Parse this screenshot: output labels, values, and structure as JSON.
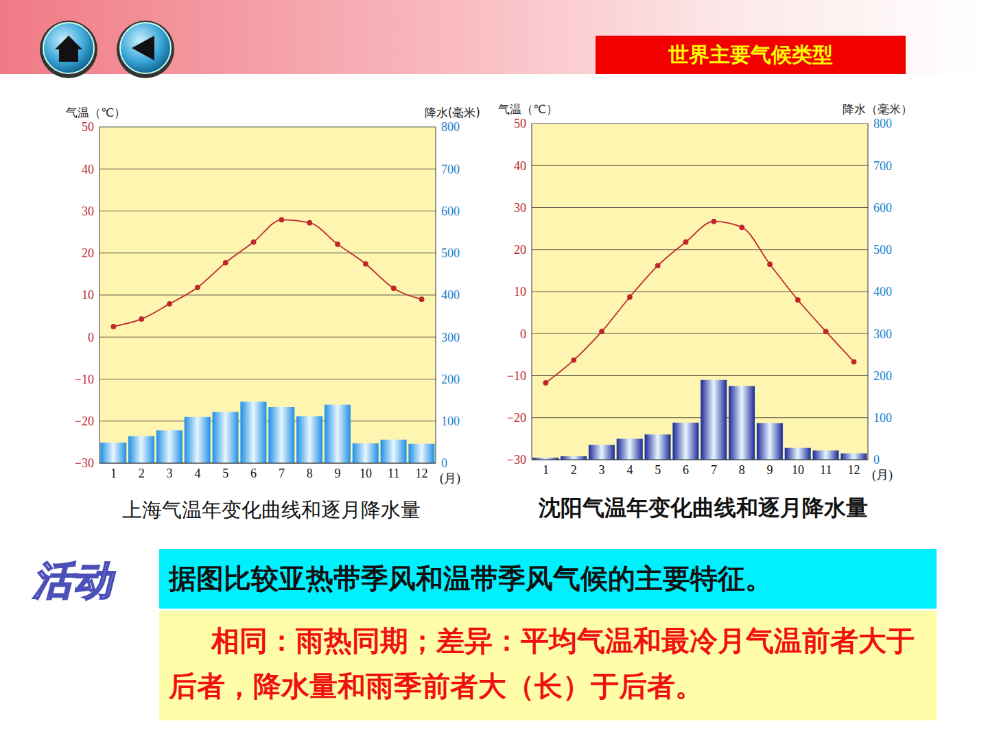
{
  "header": {
    "title": "世界主要气候类型"
  },
  "chart_data": [
    {
      "type": "bar",
      "title": "上海气温年变化曲线和逐月降水量",
      "x_label": "(月)",
      "y_label": "气温（℃）",
      "y2_label": "降水(毫米)",
      "categories": [
        "1",
        "2",
        "3",
        "4",
        "5",
        "6",
        "7",
        "8",
        "9",
        "10",
        "11",
        "12"
      ],
      "ylim": [
        -30,
        50
      ],
      "yticks": [
        {
          "value": -30,
          "label": "−30"
        },
        {
          "value": -20,
          "label": "−20"
        },
        {
          "value": -10,
          "label": "−10"
        },
        0,
        10,
        20,
        30,
        40,
        50
      ],
      "y2lim": [
        0,
        800
      ],
      "y2ticks": [
        0,
        100,
        200,
        300,
        400,
        500,
        600,
        700,
        800
      ],
      "grid": true,
      "series": [
        {
          "type": "line",
          "color": "#c0272d",
          "marker": "circle",
          "values": [
            2.5,
            4.3,
            7.9,
            11.8,
            17.7,
            22.6,
            27.9,
            27.2,
            22.1,
            17.4,
            11.6,
            9.0
          ]
        },
        {
          "type": "bar",
          "axis": "y2",
          "color": "#1f8fe6",
          "values": [
            49,
            64,
            78,
            110,
            122,
            146,
            134,
            112,
            139,
            47,
            56,
            46
          ]
        }
      ]
    },
    {
      "type": "bar",
      "title": "沈阳气温年变化曲线和逐月降水量",
      "x_label": "(月)",
      "y_label": "气温（℃）",
      "y2_label": "降水（毫米）",
      "categories": [
        "1",
        "2",
        "3",
        "4",
        "5",
        "6",
        "7",
        "8",
        "9",
        "10",
        "11",
        "12"
      ],
      "ylim": [
        -30,
        50
      ],
      "yticks": [
        {
          "value": -30,
          "label": "−30"
        },
        {
          "value": -20,
          "label": "−20"
        },
        {
          "value": -10,
          "label": "−10"
        },
        0,
        10,
        20,
        30,
        40,
        50
      ],
      "y2lim": [
        0,
        800
      ],
      "y2ticks": [
        0,
        100,
        200,
        300,
        400,
        500,
        600,
        700,
        800
      ],
      "grid": true,
      "series": [
        {
          "type": "line",
          "color": "#c0272d",
          "marker": "circle",
          "values": [
            -11.7,
            -6.3,
            0.5,
            8.7,
            16.2,
            21.8,
            26.7,
            25.3,
            16.5,
            8.0,
            0.5,
            -6.7
          ]
        },
        {
          "type": "bar",
          "axis": "y2",
          "color": "#1a2a9a",
          "values": [
            5,
            8,
            35,
            50,
            60,
            88,
            190,
            175,
            87,
            28,
            22,
            15
          ]
        }
      ]
    }
  ],
  "activity": {
    "label": "活动",
    "question": "据图比较亚热带季风和温带季风气候的主要特征。",
    "answer": "相同：雨热同期；差异：平均气温和最冷月气温前者大于后者，降水量和雨季前者大（长）于后者。"
  }
}
